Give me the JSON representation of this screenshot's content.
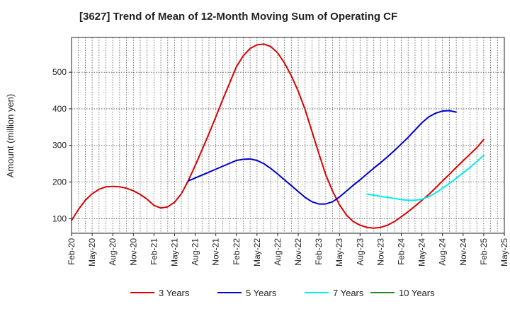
{
  "chart_data": {
    "type": "line",
    "title": "[3627]  Trend of Mean of 12-Month Moving Sum of Operating CF",
    "xlabel": "",
    "ylabel": "Amount (million yen)",
    "ylim": [
      60,
      595
    ],
    "yticks": [
      100,
      200,
      300,
      400,
      500
    ],
    "x_tick_labels": [
      "Feb-20",
      "May-20",
      "Aug-20",
      "Nov-20",
      "Feb-21",
      "May-21",
      "Aug-21",
      "Nov-21",
      "Feb-22",
      "May-22",
      "Aug-22",
      "Nov-22",
      "Feb-23",
      "May-23",
      "Aug-23",
      "Nov-23",
      "Feb-24",
      "May-24",
      "Aug-24",
      "Nov-24",
      "Feb-25",
      "May-25"
    ],
    "grid": true,
    "legend_position": "bottom",
    "series": [
      {
        "name": "3 Years",
        "color": "#dd0000",
        "start_index": 0,
        "values": [
          95,
          125,
          150,
          168,
          180,
          187,
          188,
          187,
          183,
          176,
          166,
          153,
          136,
          129,
          132,
          145,
          168,
          204,
          245,
          288,
          332,
          378,
          425,
          470,
          515,
          545,
          565,
          575,
          577,
          570,
          553,
          525,
          490,
          448,
          398,
          338,
          278,
          220,
          175,
          138,
          110,
          92,
          82,
          76,
          74,
          76,
          82,
          92,
          105,
          119,
          134,
          150,
          166,
          184,
          203,
          221,
          240,
          258,
          276,
          294,
          316
        ]
      },
      {
        "name": "5 Years",
        "color": "#0000cc",
        "start_index": 17,
        "values": [
          203,
          211,
          219,
          227,
          235,
          243,
          251,
          259,
          262,
          263,
          259,
          250,
          237,
          222,
          206,
          190,
          174,
          158,
          146,
          140,
          140,
          146,
          159,
          175,
          191,
          206,
          222,
          238,
          253,
          269,
          286,
          304,
          322,
          342,
          362,
          378,
          388,
          394,
          395,
          391
        ]
      },
      {
        "name": "7 Years",
        "color": "#00eeee",
        "start_index": 43,
        "values": [
          167,
          164,
          161,
          158,
          155,
          152,
          150,
          150,
          153,
          160,
          170,
          183,
          196,
          210,
          225,
          240,
          256,
          273
        ]
      },
      {
        "name": "10 Years",
        "color": "#228b22",
        "start_index": 0,
        "values": []
      }
    ]
  }
}
